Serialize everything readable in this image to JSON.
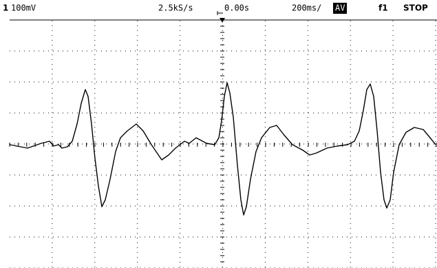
{
  "header": {
    "channel": "1",
    "volts_per_div": "100mV",
    "sample_rate": "2.5kS/s",
    "trigger_time": "0.00s",
    "time_per_div": "200ms/",
    "acquire_mode": "AV",
    "function": "f1",
    "status": "STOP"
  }
}
